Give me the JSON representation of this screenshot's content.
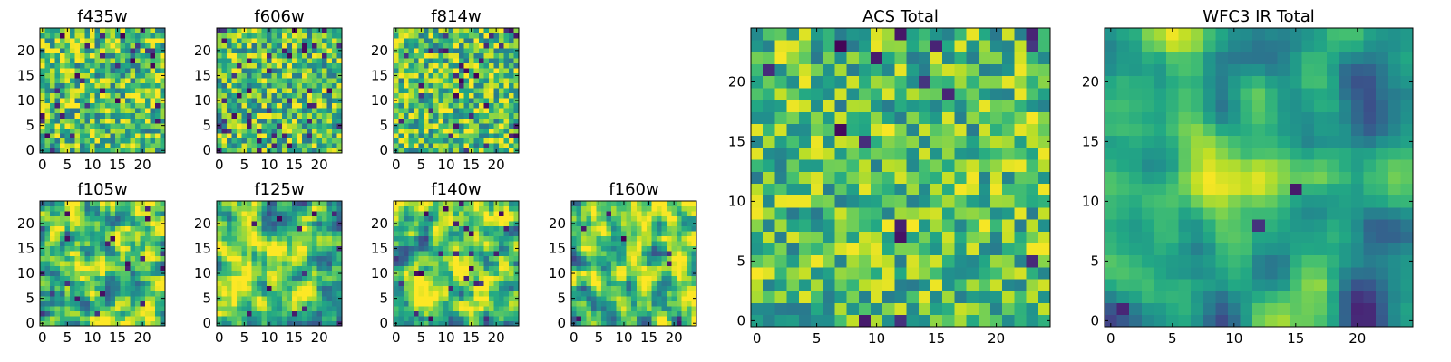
{
  "chart_data": [
    {
      "type": "heatmap",
      "title": "f435w",
      "grid_size": 25,
      "colormap": "viridis",
      "xticks": [
        0,
        5,
        10,
        15,
        20
      ],
      "yticks": [
        0,
        5,
        10,
        15,
        20
      ],
      "xlim": [
        -0.5,
        24.5
      ],
      "ylim": [
        -0.5,
        24.5
      ],
      "seed": 11,
      "smooth": 0,
      "noise": 1.0,
      "blob": 0.0,
      "base": 0.72,
      "spread": 0.2,
      "dark_freq": 0.05
    },
    {
      "type": "heatmap",
      "title": "f606w",
      "grid_size": 25,
      "colormap": "viridis",
      "xticks": [
        0,
        5,
        10,
        15,
        20
      ],
      "yticks": [
        0,
        5,
        10,
        15,
        20
      ],
      "xlim": [
        -0.5,
        24.5
      ],
      "ylim": [
        -0.5,
        24.5
      ],
      "seed": 23,
      "smooth": 0,
      "noise": 1.0,
      "blob": 0.0,
      "base": 0.7,
      "spread": 0.2,
      "dark_freq": 0.06
    },
    {
      "type": "heatmap",
      "title": "f814w",
      "grid_size": 25,
      "colormap": "viridis",
      "xticks": [
        0,
        5,
        10,
        15,
        20
      ],
      "yticks": [
        0,
        5,
        10,
        15,
        20
      ],
      "xlim": [
        -0.5,
        24.5
      ],
      "ylim": [
        -0.5,
        24.5
      ],
      "seed": 37,
      "smooth": 0,
      "noise": 1.0,
      "blob": 0.0,
      "base": 0.72,
      "spread": 0.2,
      "dark_freq": 0.05
    },
    {
      "type": "heatmap",
      "title": "f105w",
      "grid_size": 25,
      "colormap": "viridis",
      "xticks": [
        0,
        5,
        10,
        15,
        20
      ],
      "yticks": [
        0,
        5,
        10,
        15,
        20
      ],
      "xlim": [
        -0.5,
        24.5
      ],
      "ylim": [
        -0.5,
        24.5
      ],
      "seed": 41,
      "smooth": 1,
      "noise": 1.0,
      "blob": 0.15,
      "base": 0.7,
      "spread": 0.2,
      "dark_freq": 0.02
    },
    {
      "type": "heatmap",
      "title": "f125w",
      "grid_size": 25,
      "colormap": "viridis",
      "xticks": [
        0,
        5,
        10,
        15,
        20
      ],
      "yticks": [
        0,
        5,
        10,
        15,
        20
      ],
      "xlim": [
        -0.5,
        24.5
      ],
      "ylim": [
        -0.5,
        24.5
      ],
      "seed": 53,
      "smooth": 1,
      "noise": 1.0,
      "blob": 0.1,
      "base": 0.7,
      "spread": 0.2,
      "dark_freq": 0.02
    },
    {
      "type": "heatmap",
      "title": "f140w",
      "grid_size": 25,
      "colormap": "viridis",
      "xticks": [
        0,
        5,
        10,
        15,
        20
      ],
      "yticks": [
        0,
        5,
        10,
        15,
        20
      ],
      "xlim": [
        -0.5,
        24.5
      ],
      "ylim": [
        -0.5,
        24.5
      ],
      "seed": 67,
      "smooth": 1,
      "noise": 1.0,
      "blob": 0.1,
      "base": 0.72,
      "spread": 0.2,
      "dark_freq": 0.025
    },
    {
      "type": "heatmap",
      "title": "f160w",
      "grid_size": 25,
      "colormap": "viridis",
      "xticks": [
        0,
        5,
        10,
        15,
        20
      ],
      "yticks": [
        0,
        5,
        10,
        15,
        20
      ],
      "xlim": [
        -0.5,
        24.5
      ],
      "ylim": [
        -0.5,
        24.5
      ],
      "seed": 79,
      "smooth": 1,
      "noise": 1.0,
      "blob": 0.15,
      "base": 0.72,
      "spread": 0.2,
      "dark_freq": 0.02
    },
    {
      "type": "heatmap",
      "title": "ACS Total",
      "grid_size": 25,
      "colormap": "viridis",
      "xticks": [
        0,
        5,
        10,
        15,
        20
      ],
      "yticks": [
        0,
        5,
        10,
        15,
        20
      ],
      "xlim": [
        -0.5,
        24.5
      ],
      "ylim": [
        -0.5,
        24.5
      ],
      "seed": 97,
      "smooth": 0,
      "noise": 1.0,
      "blob": 0.0,
      "base": 0.7,
      "spread": 0.18,
      "dark_freq": 0.03
    },
    {
      "type": "heatmap",
      "title": "WFC3 IR Total",
      "grid_size": 25,
      "colormap": "viridis",
      "xticks": [
        0,
        5,
        10,
        15,
        20
      ],
      "yticks": [
        0,
        5,
        10,
        15,
        20
      ],
      "xlim": [
        -0.5,
        24.5
      ],
      "ylim": [
        -0.5,
        24.5
      ],
      "seed": 131,
      "smooth": 2,
      "noise": 0.6,
      "blob": 0.4,
      "blob_center": [
        12,
        12
      ],
      "base": 0.55,
      "spread": 0.22,
      "dark_freq": 0.015
    }
  ]
}
